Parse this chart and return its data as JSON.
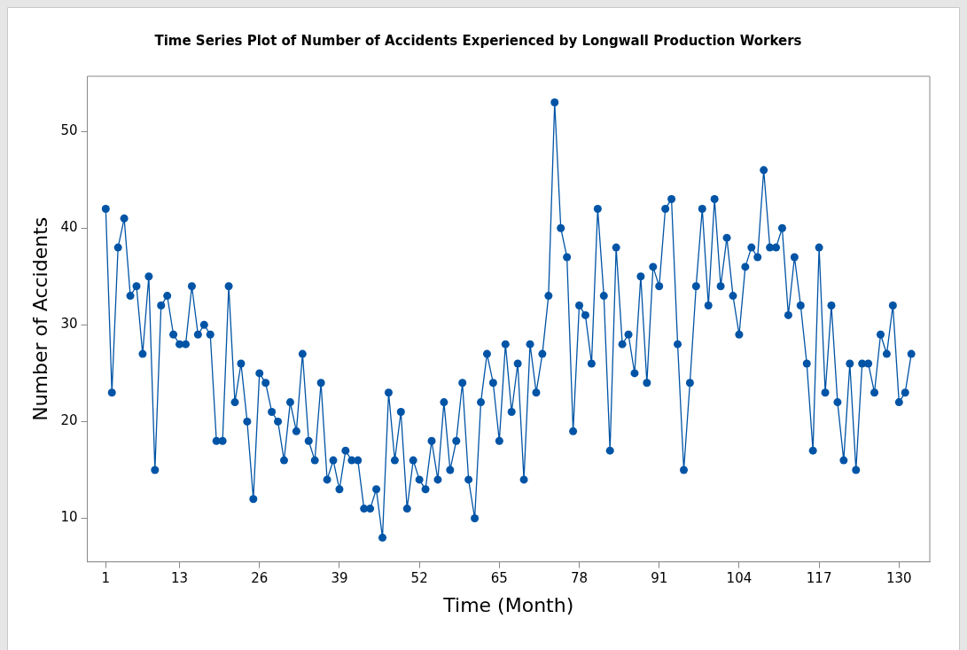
{
  "chart_data": {
    "type": "line",
    "title": "Time Series Plot of Number of Accidents Experienced by Longwall Production Workers",
    "xlabel": "Time (Month)",
    "ylabel": "Number of Accidents",
    "x": [
      1,
      2,
      3,
      4,
      5,
      6,
      7,
      8,
      9,
      10,
      11,
      12,
      13,
      14,
      15,
      16,
      17,
      18,
      19,
      20,
      21,
      22,
      23,
      24,
      25,
      26,
      27,
      28,
      29,
      30,
      31,
      32,
      33,
      34,
      35,
      36,
      37,
      38,
      39,
      40,
      41,
      42,
      43,
      44,
      45,
      46,
      47,
      48,
      49,
      50,
      51,
      52,
      53,
      54,
      55,
      56,
      57,
      58,
      59,
      60,
      61,
      62,
      63,
      64,
      65,
      66,
      67,
      68,
      69,
      70,
      71,
      72,
      73,
      74,
      75,
      76,
      77,
      78,
      79,
      80,
      81,
      82,
      83,
      84,
      85,
      86,
      87,
      88,
      89,
      90,
      91,
      92,
      93,
      94,
      95,
      96,
      97,
      98,
      99,
      100,
      101,
      102,
      103,
      104,
      105,
      106,
      107,
      108,
      109,
      110,
      111,
      112,
      113,
      114,
      115,
      116,
      117,
      118,
      119,
      120,
      121,
      122,
      123,
      124,
      125,
      126,
      127,
      128,
      129,
      130,
      131,
      132
    ],
    "series": [
      {
        "color": "#0054a6",
        "values": [
          42,
          23,
          38,
          41,
          33,
          34,
          27,
          35,
          15,
          32,
          33,
          29,
          28,
          28,
          34,
          29,
          30,
          29,
          18,
          18,
          34,
          22,
          26,
          20,
          12,
          25,
          24,
          21,
          20,
          16,
          22,
          19,
          27,
          18,
          16,
          24,
          14,
          16,
          13,
          17,
          16,
          16,
          11,
          11,
          13,
          8,
          23,
          16,
          21,
          11,
          16,
          14,
          13,
          18,
          14,
          22,
          15,
          18,
          24,
          14,
          10,
          22,
          27,
          24,
          18,
          28,
          21,
          26,
          14,
          28,
          23,
          27,
          33,
          53,
          40,
          37,
          19,
          32,
          31,
          26,
          42,
          33,
          17,
          38,
          28,
          29,
          25,
          35,
          24,
          36,
          34,
          42,
          43,
          28,
          15,
          24,
          34,
          42,
          32,
          43,
          34,
          39,
          33,
          29,
          36,
          38,
          37,
          46,
          38,
          38,
          40,
          31,
          37,
          32,
          26,
          17,
          38,
          23,
          32,
          22,
          16,
          26,
          15,
          26,
          26,
          23,
          29,
          27,
          32,
          22,
          23,
          27
        ]
      }
    ],
    "xlim": [
      -2,
      135
    ],
    "xticks": [
      1,
      13,
      26,
      39,
      52,
      65,
      78,
      91,
      104,
      117,
      130
    ],
    "ylim": [
      5.5,
      55.7
    ],
    "yticks": [
      10,
      20,
      30,
      40,
      50
    ],
    "grid": false,
    "legend": false,
    "marker": "circle",
    "line_style": "solid"
  }
}
